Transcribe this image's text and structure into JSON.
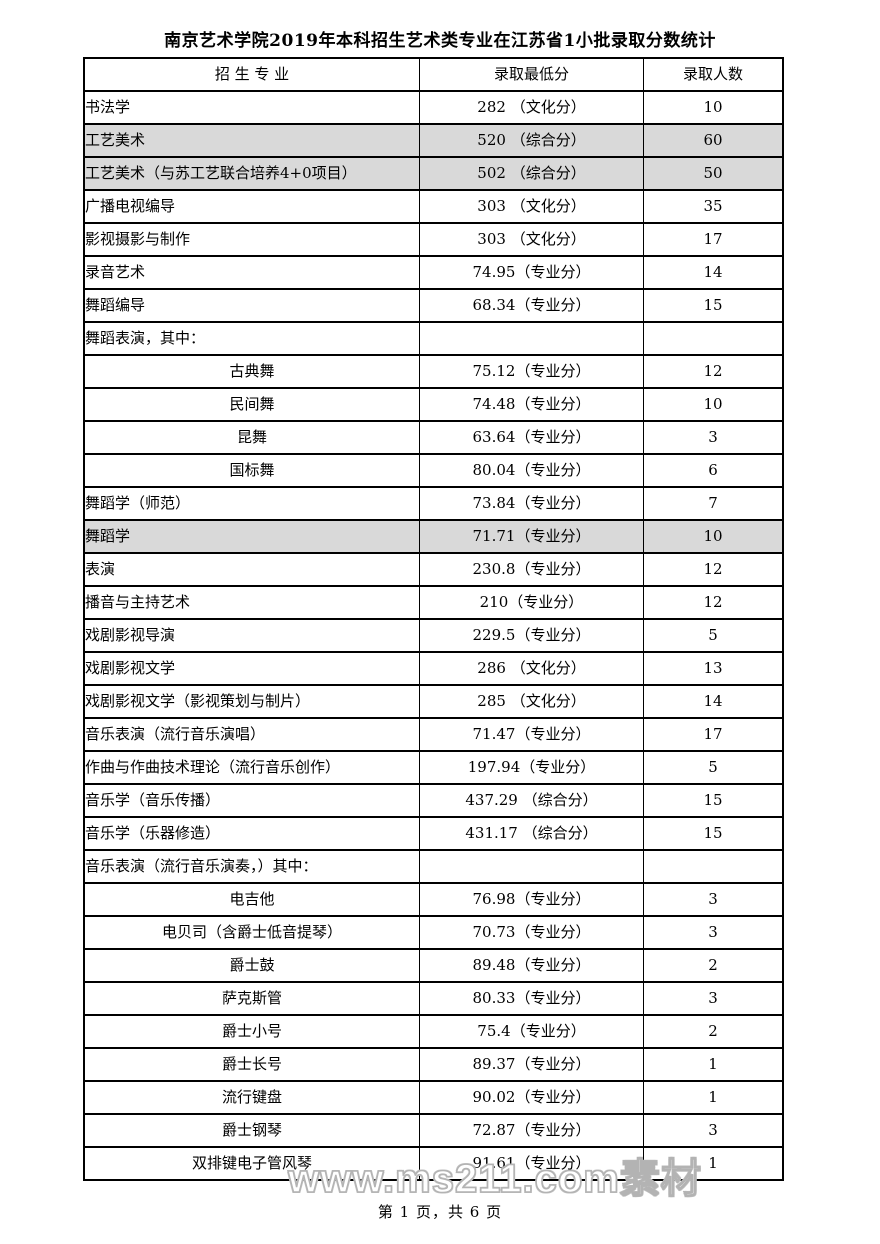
{
  "title": "南京艺术学院2019年本科招生艺术类专业在江苏省1小批录取分数统计",
  "colors": {
    "shaded_row": "#d9d9d9",
    "border": "#000000",
    "watermark_outline": "#b3b3b3"
  },
  "table": {
    "headers": [
      "招 生 专 业",
      "录取最低分",
      "录取人数"
    ],
    "rows": [
      {
        "major": "书法学",
        "score": "282 （文化分）",
        "count": "10",
        "shaded": false,
        "centered": false
      },
      {
        "major": "工艺美术",
        "score": "520 （综合分）",
        "count": "60",
        "shaded": true,
        "centered": false
      },
      {
        "major": "工艺美术（与苏工艺联合培养4+0项目）",
        "score": "502 （综合分）",
        "count": "50",
        "shaded": true,
        "centered": false
      },
      {
        "major": "广播电视编导",
        "score": "303 （文化分）",
        "count": "35",
        "shaded": false,
        "centered": false
      },
      {
        "major": "影视摄影与制作",
        "score": "303 （文化分）",
        "count": "17",
        "shaded": false,
        "centered": false
      },
      {
        "major": "录音艺术",
        "score": "74.95（专业分）",
        "count": "14",
        "shaded": false,
        "centered": false
      },
      {
        "major": "舞蹈编导",
        "score": "68.34（专业分）",
        "count": "15",
        "shaded": false,
        "centered": false
      },
      {
        "major": "舞蹈表演，其中：",
        "score": "",
        "count": "",
        "shaded": false,
        "centered": false
      },
      {
        "major": "古典舞",
        "score": "75.12（专业分）",
        "count": "12",
        "shaded": false,
        "centered": true
      },
      {
        "major": "民间舞",
        "score": "74.48（专业分）",
        "count": "10",
        "shaded": false,
        "centered": true
      },
      {
        "major": "昆舞",
        "score": "63.64（专业分）",
        "count": "3",
        "shaded": false,
        "centered": true
      },
      {
        "major": "国标舞",
        "score": "80.04（专业分）",
        "count": "6",
        "shaded": false,
        "centered": true
      },
      {
        "major": "舞蹈学（师范）",
        "score": "73.84（专业分）",
        "count": "7",
        "shaded": false,
        "centered": false
      },
      {
        "major": "舞蹈学",
        "score": "71.71（专业分）",
        "count": "10",
        "shaded": true,
        "centered": false
      },
      {
        "major": "表演",
        "score": "230.8（专业分）",
        "count": "12",
        "shaded": false,
        "centered": false
      },
      {
        "major": "播音与主持艺术",
        "score": "210（专业分）",
        "count": "12",
        "shaded": false,
        "centered": false
      },
      {
        "major": "戏剧影视导演",
        "score": "229.5（专业分）",
        "count": "5",
        "shaded": false,
        "centered": false
      },
      {
        "major": "戏剧影视文学",
        "score": "286 （文化分）",
        "count": "13",
        "shaded": false,
        "centered": false
      },
      {
        "major": "戏剧影视文学（影视策划与制片）",
        "score": "285 （文化分）",
        "count": "14",
        "shaded": false,
        "centered": false
      },
      {
        "major": "音乐表演（流行音乐演唱）",
        "score": "71.47（专业分）",
        "count": "17",
        "shaded": false,
        "centered": false
      },
      {
        "major": "作曲与作曲技术理论（流行音乐创作）",
        "score": "197.94（专业分）",
        "count": "5",
        "shaded": false,
        "centered": false
      },
      {
        "major": "音乐学（音乐传播）",
        "score": "437.29 （综合分）",
        "count": "15",
        "shaded": false,
        "centered": false
      },
      {
        "major": "音乐学（乐器修造）",
        "score": "431.17 （综合分）",
        "count": "15",
        "shaded": false,
        "centered": false
      },
      {
        "major": "音乐表演（流行音乐演奏，）其中：",
        "score": "",
        "count": "",
        "shaded": false,
        "centered": false
      },
      {
        "major": "电吉他",
        "score": "76.98（专业分）",
        "count": "3",
        "shaded": false,
        "centered": true
      },
      {
        "major": "电贝司（含爵士低音提琴）",
        "score": "70.73（专业分）",
        "count": "3",
        "shaded": false,
        "centered": true
      },
      {
        "major": "爵士鼓",
        "score": "89.48（专业分）",
        "count": "2",
        "shaded": false,
        "centered": true
      },
      {
        "major": "萨克斯管",
        "score": "80.33（专业分）",
        "count": "3",
        "shaded": false,
        "centered": true
      },
      {
        "major": "爵士小号",
        "score": "75.4（专业分）",
        "count": "2",
        "shaded": false,
        "centered": true
      },
      {
        "major": "爵士长号",
        "score": "89.37（专业分）",
        "count": "1",
        "shaded": false,
        "centered": true
      },
      {
        "major": "流行键盘",
        "score": "90.02（专业分）",
        "count": "1",
        "shaded": false,
        "centered": true
      },
      {
        "major": "爵士钢琴",
        "score": "72.87（专业分）",
        "count": "3",
        "shaded": false,
        "centered": true
      },
      {
        "major": "双排键电子管风琴",
        "score": "91.61（专业分）",
        "count": "1",
        "shaded": false,
        "centered": true
      }
    ]
  },
  "watermark": "www.ms211.com素材",
  "footer": "第 1 页，共 6 页"
}
